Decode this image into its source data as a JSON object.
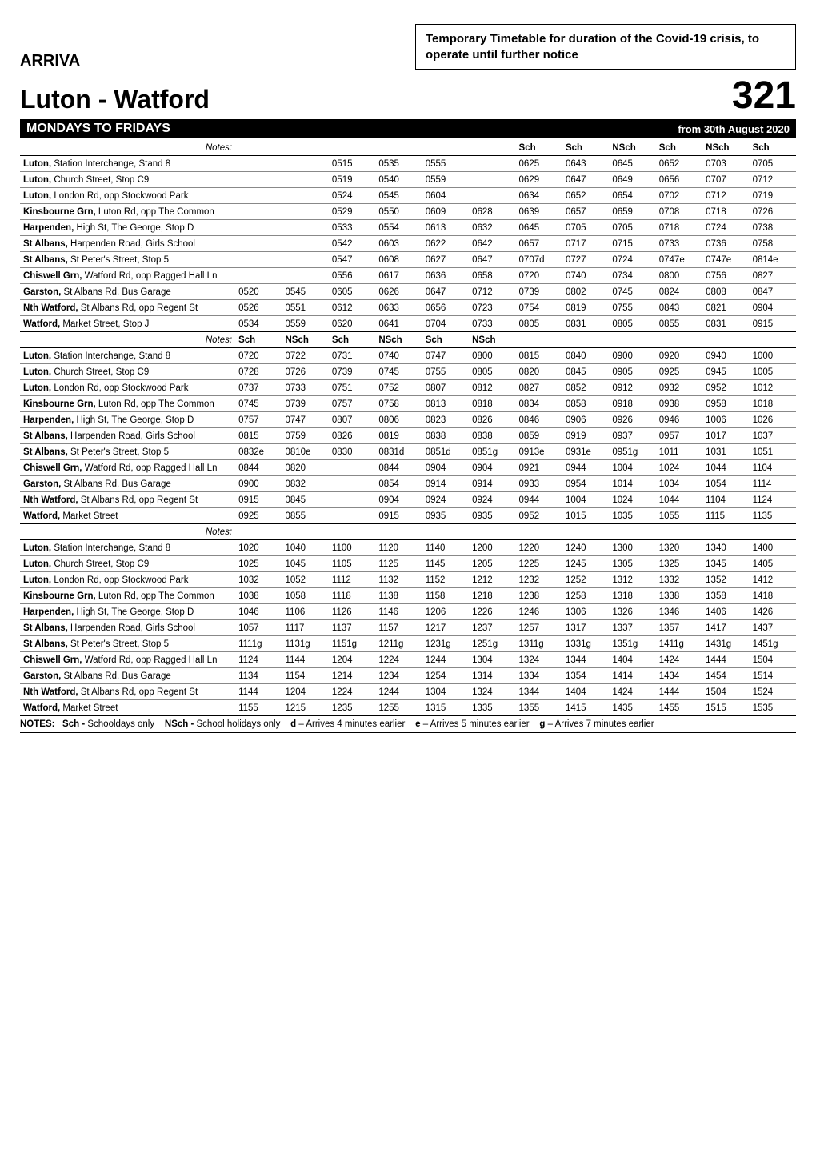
{
  "notice": "Temporary Timetable for duration of the Covid-19 crisis, to operate until further notice",
  "operator": "ARRIVA",
  "route_name": "Luton  - Watford",
  "route_number": "321",
  "days_label": "MONDAYS TO FRIDAYS",
  "effective": "from 30th August 2020",
  "notes_label": "Notes:",
  "stops": [
    {
      "main": "Luton,",
      "sub": " Station Interchange, Stand 8"
    },
    {
      "main": "Luton,",
      "sub": " Church Street, Stop C9"
    },
    {
      "main": "Luton,",
      "sub": " London Rd, opp Stockwood Park"
    },
    {
      "main": "Kinsbourne Grn,",
      "sub": " Luton Rd, opp The Common"
    },
    {
      "main": "Harpenden,",
      "sub": " High St, The George, Stop D"
    },
    {
      "main": "St Albans,",
      "sub": " Harpenden Road, Girls School"
    },
    {
      "main": "St Albans,",
      "sub": " St Peter's Street, Stop 5"
    },
    {
      "main": "Chiswell Grn,",
      "sub": " Watford Rd, opp Ragged Hall Ln"
    },
    {
      "main": "Garston,",
      "sub": " St Albans Rd, Bus Garage"
    },
    {
      "main": "Nth Watford,",
      "sub": " St Albans Rd, opp Regent St"
    },
    {
      "main": "Watford,",
      "sub": " Market Street, Stop J"
    }
  ],
  "stops2_last": {
    "main": "Watford,",
    "sub": " Market Street"
  },
  "block1": {
    "headers": [
      "",
      "",
      "",
      "",
      "",
      "",
      "Sch",
      "Sch",
      "NSch",
      "Sch",
      "NSch",
      "Sch"
    ],
    "rows": [
      [
        "",
        "",
        "0515",
        "0535",
        "0555",
        "",
        "0625",
        "0643",
        "0645",
        "0652",
        "0703",
        "0705"
      ],
      [
        "",
        "",
        "0519",
        "0540",
        "0559",
        "",
        "0629",
        "0647",
        "0649",
        "0656",
        "0707",
        "0712"
      ],
      [
        "",
        "",
        "0524",
        "0545",
        "0604",
        "",
        "0634",
        "0652",
        "0654",
        "0702",
        "0712",
        "0719"
      ],
      [
        "",
        "",
        "0529",
        "0550",
        "0609",
        "0628",
        "0639",
        "0657",
        "0659",
        "0708",
        "0718",
        "0726"
      ],
      [
        "",
        "",
        "0533",
        "0554",
        "0613",
        "0632",
        "0645",
        "0705",
        "0705",
        "0718",
        "0724",
        "0738"
      ],
      [
        "",
        "",
        "0542",
        "0603",
        "0622",
        "0642",
        "0657",
        "0717",
        "0715",
        "0733",
        "0736",
        "0758"
      ],
      [
        "",
        "",
        "0547",
        "0608",
        "0627",
        "0647",
        "0707d",
        "0727",
        "0724",
        "0747e",
        "0747e",
        "0814e"
      ],
      [
        "",
        "",
        "0556",
        "0617",
        "0636",
        "0658",
        "0720",
        "0740",
        "0734",
        "0800",
        "0756",
        "0827"
      ],
      [
        "0520",
        "0545",
        "0605",
        "0626",
        "0647",
        "0712",
        "0739",
        "0802",
        "0745",
        "0824",
        "0808",
        "0847"
      ],
      [
        "0526",
        "0551",
        "0612",
        "0633",
        "0656",
        "0723",
        "0754",
        "0819",
        "0755",
        "0843",
        "0821",
        "0904"
      ],
      [
        "0534",
        "0559",
        "0620",
        "0641",
        "0704",
        "0733",
        "0805",
        "0831",
        "0805",
        "0855",
        "0831",
        "0915"
      ]
    ]
  },
  "block2": {
    "headers": [
      "Sch",
      "NSch",
      "Sch",
      "NSch",
      "Sch",
      "NSch",
      "",
      "",
      "",
      "",
      "",
      ""
    ],
    "rows": [
      [
        "0720",
        "0722",
        "0731",
        "0740",
        "0747",
        "0800",
        "0815",
        "0840",
        "0900",
        "0920",
        "0940",
        "1000"
      ],
      [
        "0728",
        "0726",
        "0739",
        "0745",
        "0755",
        "0805",
        "0820",
        "0845",
        "0905",
        "0925",
        "0945",
        "1005"
      ],
      [
        "0737",
        "0733",
        "0751",
        "0752",
        "0807",
        "0812",
        "0827",
        "0852",
        "0912",
        "0932",
        "0952",
        "1012"
      ],
      [
        "0745",
        "0739",
        "0757",
        "0758",
        "0813",
        "0818",
        "0834",
        "0858",
        "0918",
        "0938",
        "0958",
        "1018"
      ],
      [
        "0757",
        "0747",
        "0807",
        "0806",
        "0823",
        "0826",
        "0846",
        "0906",
        "0926",
        "0946",
        "1006",
        "1026"
      ],
      [
        "0815",
        "0759",
        "0826",
        "0819",
        "0838",
        "0838",
        "0859",
        "0919",
        "0937",
        "0957",
        "1017",
        "1037"
      ],
      [
        "0832e",
        "0810e",
        "0830",
        "0831d",
        "0851d",
        "0851g",
        "0913e",
        "0931e",
        "0951g",
        "1011",
        "1031",
        "1051"
      ],
      [
        "0844",
        "0820",
        "",
        "0844",
        "0904",
        "0904",
        "0921",
        "0944",
        "1004",
        "1024",
        "1044",
        "1104"
      ],
      [
        "0900",
        "0832",
        "",
        "0854",
        "0914",
        "0914",
        "0933",
        "0954",
        "1014",
        "1034",
        "1054",
        "1114"
      ],
      [
        "0915",
        "0845",
        "",
        "0904",
        "0924",
        "0924",
        "0944",
        "1004",
        "1024",
        "1044",
        "1104",
        "1124"
      ],
      [
        "0925",
        "0855",
        "",
        "0915",
        "0935",
        "0935",
        "0952",
        "1015",
        "1035",
        "1055",
        "1115",
        "1135"
      ]
    ]
  },
  "block3": {
    "headers": [
      "",
      "",
      "",
      "",
      "",
      "",
      "",
      "",
      "",
      "",
      "",
      ""
    ],
    "rows": [
      [
        "1020",
        "1040",
        "1100",
        "1120",
        "1140",
        "1200",
        "1220",
        "1240",
        "1300",
        "1320",
        "1340",
        "1400"
      ],
      [
        "1025",
        "1045",
        "1105",
        "1125",
        "1145",
        "1205",
        "1225",
        "1245",
        "1305",
        "1325",
        "1345",
        "1405"
      ],
      [
        "1032",
        "1052",
        "1112",
        "1132",
        "1152",
        "1212",
        "1232",
        "1252",
        "1312",
        "1332",
        "1352",
        "1412"
      ],
      [
        "1038",
        "1058",
        "1118",
        "1138",
        "1158",
        "1218",
        "1238",
        "1258",
        "1318",
        "1338",
        "1358",
        "1418"
      ],
      [
        "1046",
        "1106",
        "1126",
        "1146",
        "1206",
        "1226",
        "1246",
        "1306",
        "1326",
        "1346",
        "1406",
        "1426"
      ],
      [
        "1057",
        "1117",
        "1137",
        "1157",
        "1217",
        "1237",
        "1257",
        "1317",
        "1337",
        "1357",
        "1417",
        "1437"
      ],
      [
        "1111g",
        "1131g",
        "1151g",
        "1211g",
        "1231g",
        "1251g",
        "1311g",
        "1331g",
        "1351g",
        "1411g",
        "1431g",
        "1451g"
      ],
      [
        "1124",
        "1144",
        "1204",
        "1224",
        "1244",
        "1304",
        "1324",
        "1344",
        "1404",
        "1424",
        "1444",
        "1504"
      ],
      [
        "1134",
        "1154",
        "1214",
        "1234",
        "1254",
        "1314",
        "1334",
        "1354",
        "1414",
        "1434",
        "1454",
        "1514"
      ],
      [
        "1144",
        "1204",
        "1224",
        "1244",
        "1304",
        "1324",
        "1344",
        "1404",
        "1424",
        "1444",
        "1504",
        "1524"
      ],
      [
        "1155",
        "1215",
        "1235",
        "1255",
        "1315",
        "1335",
        "1355",
        "1415",
        "1435",
        "1455",
        "1515",
        "1535"
      ]
    ]
  },
  "footnotes": {
    "label": "NOTES:",
    "sch": "Sch - ",
    "sch_text": "Schooldays only",
    "nsch": "NSch - ",
    "nsch_text": "School holidays only",
    "d": "d",
    "d_text": " – Arrives 4 minutes earlier",
    "e": "e",
    "e_text": " – Arrives 5 minutes earlier",
    "g": "g",
    "g_text": " – Arrives 7 minutes earlier"
  }
}
